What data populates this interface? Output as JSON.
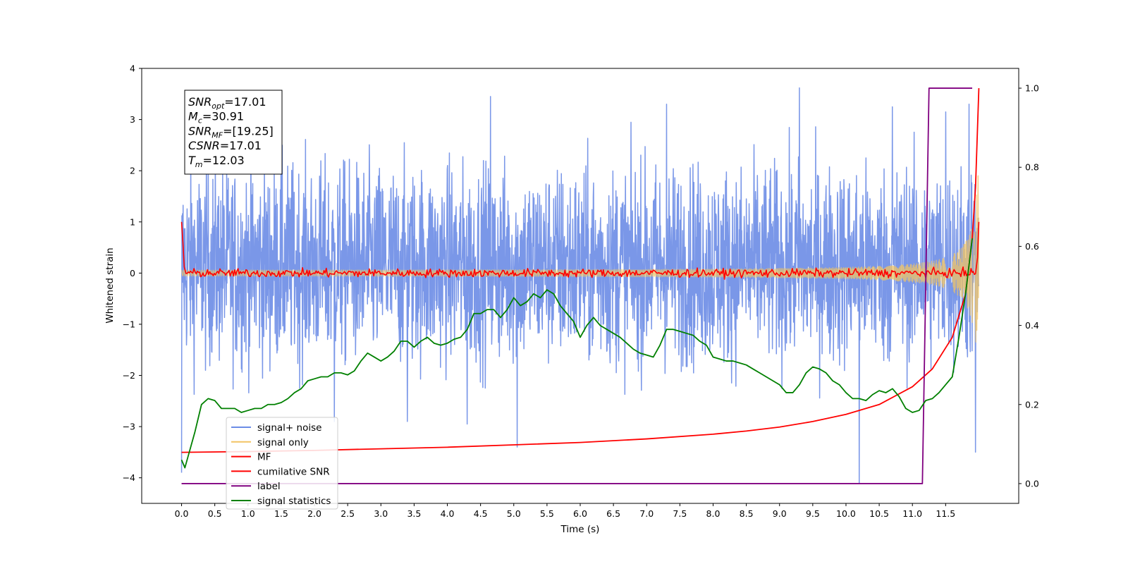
{
  "chart_data": {
    "type": "line",
    "title": "",
    "xlabel": "Time (s)",
    "ylabel": "Whitened strain",
    "y2label": "",
    "xlim": [
      -0.6,
      12.6
    ],
    "ylim": [
      -4.5,
      4.0
    ],
    "y2lim": [
      -0.05,
      1.05
    ],
    "x_ticks": [
      "0.0",
      "0.5",
      "1.0",
      "1.5",
      "2.0",
      "2.5",
      "3.0",
      "3.5",
      "4.0",
      "4.5",
      "5.0",
      "5.5",
      "6.0",
      "6.5",
      "7.0",
      "7.5",
      "8.0",
      "8.5",
      "9.0",
      "9.5",
      "10.0",
      "10.5",
      "11.0",
      "11.5"
    ],
    "y_ticks": [
      "4",
      "3",
      "2",
      "1",
      "0",
      "−1",
      "−2",
      "−3",
      "−4"
    ],
    "y2_ticks": [
      "1.0",
      "0.8",
      "0.6",
      "0.4",
      "0.2",
      "0.0"
    ],
    "grid": false,
    "legend_position": "lower-left",
    "annotation": [
      {
        "sym": "SNR",
        "sub": "opt",
        "rest": "=17.01"
      },
      {
        "sym": "M",
        "sub": "c",
        "rest": "=30.91"
      },
      {
        "sym": "SNR",
        "sub": "MF",
        "rest": "=[19.25]"
      },
      {
        "sym": "CSNR",
        "sub": "",
        "rest": "=17.01"
      },
      {
        "sym": "T",
        "sub": "m",
        "rest": "=12.03"
      }
    ],
    "series": [
      {
        "name": "signal+ noise",
        "color": "#6b8ce6",
        "axis": "left",
        "kind": "noise",
        "x_range": [
          0.0,
          12.0
        ],
        "center": 0.15,
        "typical_high": 2.2,
        "typical_low": -1.8,
        "max": 3.62,
        "min": -4.1,
        "spikes": [
          {
            "x": 4.65,
            "y": 3.45
          },
          {
            "x": 5.05,
            "y": 3.35
          },
          {
            "x": 7.3,
            "y": 3.3
          },
          {
            "x": 9.3,
            "y": 3.62
          },
          {
            "x": 10.7,
            "y": 3.25
          },
          {
            "x": 11.5,
            "y": 3.15
          },
          {
            "x": 11.85,
            "y": 3.3
          },
          {
            "x": 5.05,
            "y": -3.4
          },
          {
            "x": 4.3,
            "y": -2.95
          },
          {
            "x": 10.2,
            "y": -4.1
          },
          {
            "x": 3.4,
            "y": -2.9
          },
          {
            "x": 2.3,
            "y": -2.9
          },
          {
            "x": 11.95,
            "y": -3.5
          },
          {
            "x": 0.0,
            "y": -3.9
          }
        ]
      },
      {
        "name": "signal only",
        "color": "#f2c464",
        "axis": "left",
        "kind": "chirp",
        "x_range": [
          0.0,
          12.0
        ],
        "amplitude_start": 0.05,
        "amplitude_end": 2.3
      },
      {
        "name": "MF",
        "color": "#ff0000",
        "axis": "left",
        "kind": "mf",
        "x_range": [
          0.0,
          12.0
        ],
        "start_value": 1.0,
        "baseline": 0.0,
        "jitter": 0.08,
        "end_value": 1.0
      },
      {
        "name": "cumilative SNR",
        "color": "#ff0000",
        "axis": "right",
        "x": [
          0.0,
          1.0,
          2.0,
          3.0,
          4.0,
          5.0,
          6.0,
          7.0,
          8.0,
          8.5,
          9.0,
          9.5,
          10.0,
          10.5,
          11.0,
          11.3,
          11.6,
          11.8,
          11.9,
          11.95,
          12.0
        ],
        "y": [
          0.079,
          0.081,
          0.084,
          0.088,
          0.092,
          0.098,
          0.104,
          0.113,
          0.125,
          0.133,
          0.143,
          0.157,
          0.175,
          0.2,
          0.245,
          0.29,
          0.37,
          0.48,
          0.62,
          0.75,
          1.0
        ]
      },
      {
        "name": "label",
        "color": "#800080",
        "axis": "right",
        "x": [
          0.0,
          11.15,
          11.2,
          11.25,
          11.5,
          11.8,
          11.9
        ],
        "y": [
          0.0,
          0.0,
          0.5,
          1.0,
          1.0,
          1.0,
          1.0
        ]
      },
      {
        "name": "signal statistics",
        "color": "#008000",
        "axis": "right",
        "x": [
          0.0,
          0.05,
          0.1,
          0.2,
          0.3,
          0.4,
          0.5,
          0.6,
          0.7,
          0.8,
          0.9,
          1.0,
          1.1,
          1.2,
          1.3,
          1.4,
          1.5,
          1.6,
          1.7,
          1.8,
          1.9,
          2.0,
          2.1,
          2.2,
          2.3,
          2.4,
          2.5,
          2.6,
          2.7,
          2.8,
          2.9,
          3.0,
          3.1,
          3.2,
          3.3,
          3.4,
          3.5,
          3.6,
          3.7,
          3.8,
          3.9,
          4.0,
          4.1,
          4.2,
          4.3,
          4.4,
          4.5,
          4.6,
          4.7,
          4.8,
          4.9,
          5.0,
          5.1,
          5.2,
          5.3,
          5.4,
          5.5,
          5.6,
          5.7,
          5.8,
          5.9,
          6.0,
          6.1,
          6.2,
          6.3,
          6.4,
          6.5,
          6.6,
          6.7,
          6.8,
          6.9,
          7.0,
          7.1,
          7.2,
          7.3,
          7.4,
          7.5,
          7.6,
          7.7,
          7.8,
          7.9,
          8.0,
          8.1,
          8.2,
          8.3,
          8.4,
          8.5,
          8.6,
          8.7,
          8.8,
          8.9,
          9.0,
          9.1,
          9.2,
          9.3,
          9.4,
          9.5,
          9.6,
          9.7,
          9.8,
          9.9,
          10.0,
          10.1,
          10.2,
          10.3,
          10.4,
          10.5,
          10.6,
          10.7,
          10.8,
          10.9,
          11.0,
          11.1,
          11.2,
          11.3,
          11.4,
          11.5,
          11.6,
          11.7,
          11.8,
          11.9
        ],
        "y": [
          0.06,
          0.04,
          0.07,
          0.13,
          0.2,
          0.215,
          0.21,
          0.19,
          0.19,
          0.19,
          0.18,
          0.185,
          0.19,
          0.19,
          0.2,
          0.2,
          0.205,
          0.215,
          0.23,
          0.24,
          0.26,
          0.265,
          0.27,
          0.27,
          0.28,
          0.28,
          0.275,
          0.285,
          0.31,
          0.33,
          0.32,
          0.31,
          0.32,
          0.335,
          0.36,
          0.36,
          0.345,
          0.36,
          0.37,
          0.355,
          0.35,
          0.355,
          0.365,
          0.37,
          0.39,
          0.43,
          0.43,
          0.44,
          0.44,
          0.42,
          0.44,
          0.47,
          0.45,
          0.46,
          0.48,
          0.47,
          0.49,
          0.48,
          0.45,
          0.43,
          0.41,
          0.37,
          0.4,
          0.42,
          0.4,
          0.39,
          0.38,
          0.37,
          0.355,
          0.34,
          0.33,
          0.325,
          0.32,
          0.35,
          0.39,
          0.39,
          0.385,
          0.38,
          0.375,
          0.36,
          0.35,
          0.32,
          0.315,
          0.31,
          0.31,
          0.305,
          0.3,
          0.29,
          0.28,
          0.27,
          0.26,
          0.25,
          0.23,
          0.23,
          0.25,
          0.28,
          0.295,
          0.29,
          0.28,
          0.26,
          0.25,
          0.23,
          0.215,
          0.215,
          0.21,
          0.225,
          0.235,
          0.23,
          0.24,
          0.22,
          0.19,
          0.18,
          0.185,
          0.21,
          0.215,
          0.23,
          0.25,
          0.27,
          0.37,
          0.48,
          0.62
        ]
      }
    ]
  }
}
